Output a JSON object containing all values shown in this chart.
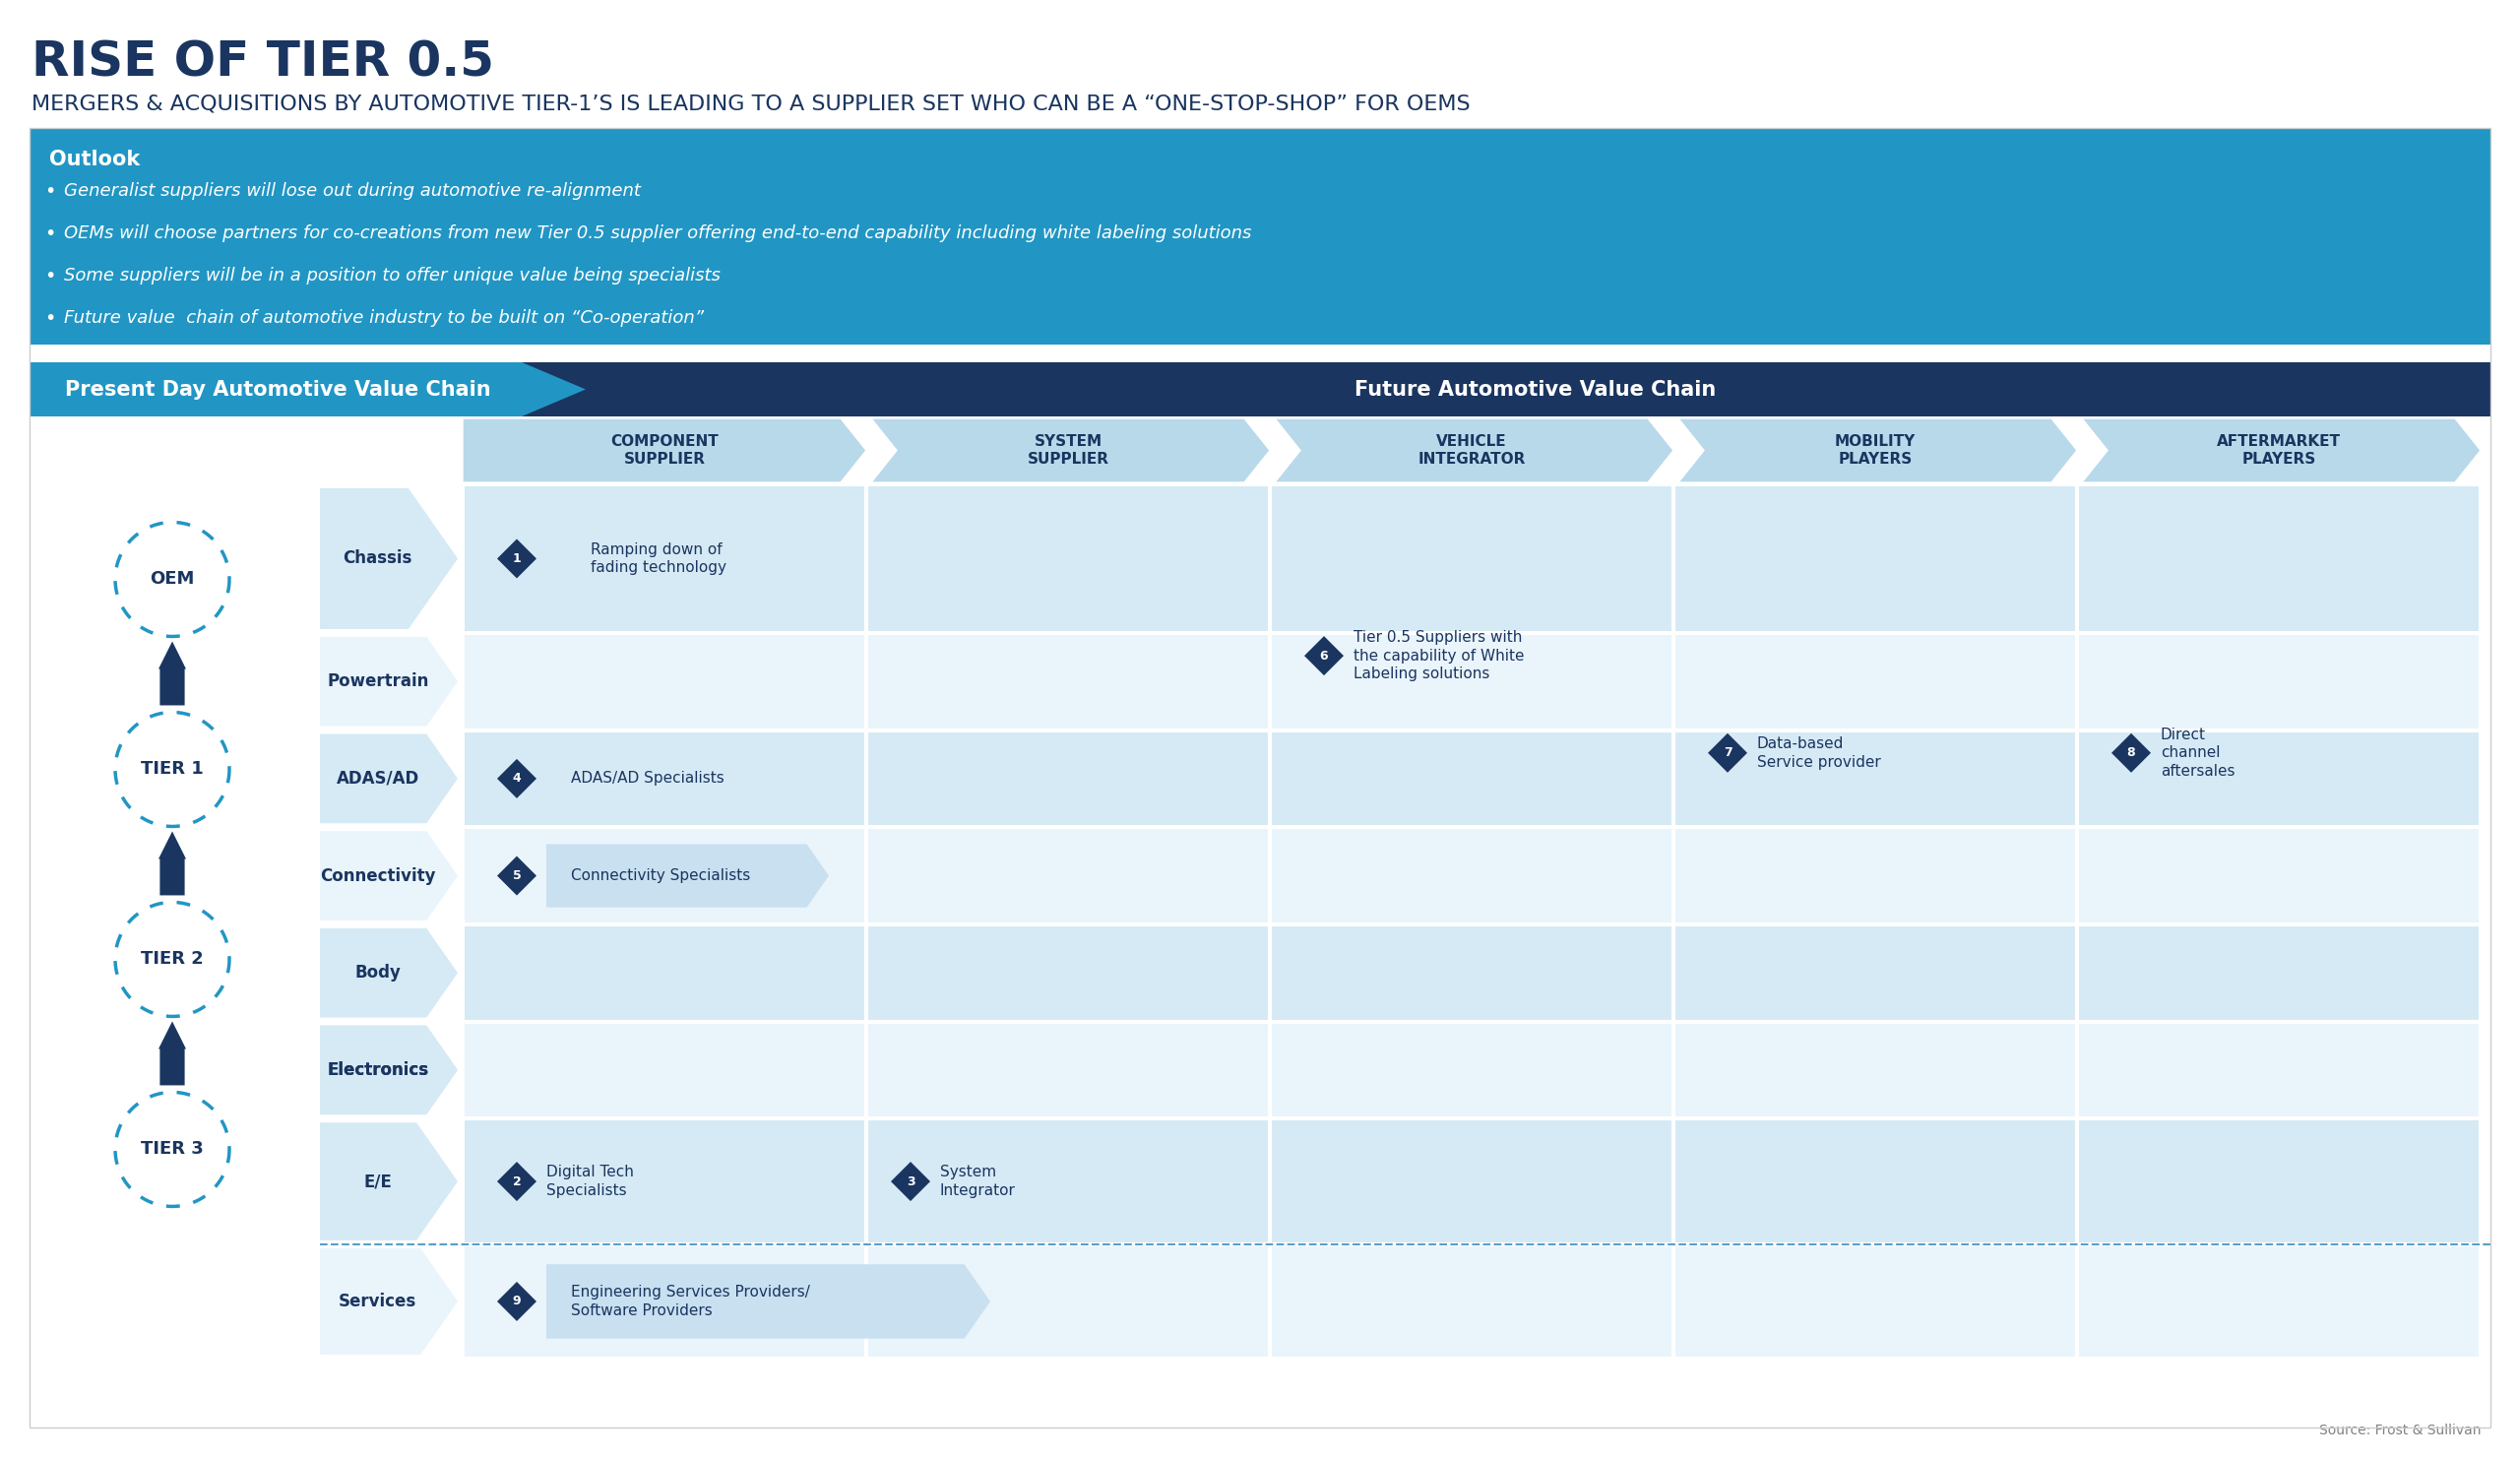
{
  "title": "RISE OF TIER 0.5",
  "subtitle": "MERGERS & ACQUISITIONS BY AUTOMOTIVE TIER-1’S IS LEADING TO A SUPPLIER SET WHO CAN BE A “ONE-STOP-SHOP” FOR OEMS",
  "outlook_title": "Outlook",
  "outlook_bullets": [
    "Generalist suppliers will lose out during automotive re-alignment",
    "OEMs will choose partners for co-creations from new Tier 0.5 supplier offering end-to-end capability including white labeling solutions",
    "Some suppliers will be in a position to offer unique value being specialists",
    "Future value  chain of automotive industry to be built on “Co-operation”"
  ],
  "left_label": "Present Day Automotive Value Chain",
  "right_label": "Future Automotive Value Chain",
  "tiers": [
    "OEM",
    "TIER 1",
    "TIER 2",
    "TIER 3"
  ],
  "rows": [
    "Chassis",
    "Powertrain",
    "ADAS/AD",
    "Connectivity",
    "Body",
    "Electronics",
    "E/E",
    "Services"
  ],
  "col_headers": [
    "COMPONENT\nSUPPLIER",
    "SYSTEM\nSUPPLIER",
    "VEHICLE\nINTEGRATOR",
    "MOBILITY\nPLAYERS",
    "AFTERMARKET\nPLAYERS"
  ],
  "items": [
    {
      "num": "1",
      "text": "Ramping down of\nfading technology",
      "row": "Chassis",
      "col": "COMPONENT\nSUPPLIER"
    },
    {
      "num": "2",
      "text": "Digital Tech\nSpecialists",
      "row": "E/E",
      "col": "COMPONENT\nSUPPLIER"
    },
    {
      "num": "3",
      "text": "System\nIntegrator",
      "row": "E/E",
      "col": "SYSTEM\nSUPPLIER"
    },
    {
      "num": "4",
      "text": "ADAS/AD Specialists",
      "row": "ADAS/AD",
      "col": "COMPONENT\nSUPPLIER"
    },
    {
      "num": "5",
      "text": "Connectivity Specialists",
      "row": "Connectivity",
      "col": "COMPONENT\nSUPPLIER"
    },
    {
      "num": "6",
      "text": "Tier 0.5 Suppliers with\nthe capability of White\nLabeling solutions",
      "row": "Chassis",
      "col": "VEHICLE\nINTEGRATOR"
    },
    {
      "num": "7",
      "text": "Data-based\nService provider",
      "row": "Chassis",
      "col": "MOBILITY\nPLAYERS"
    },
    {
      "num": "8",
      "text": "Direct\nchannel\naftersales",
      "row": "Chassis",
      "col": "AFTERMARKET\nPLAYERS"
    },
    {
      "num": "9",
      "text": "Engineering Services Providers/\nSoftware Providers",
      "row": "Services",
      "col": "COMPONENT\nSUPPLIER"
    }
  ],
  "bg_color": "#ffffff",
  "title_color": "#1a3560",
  "subtitle_color": "#1a3560",
  "outlook_bg": "#2196c4",
  "outlook_text_color": "#ffffff",
  "header_bar_color": "#1a3560",
  "header_text_color": "#ffffff",
  "left_header_bg": "#2196c4",
  "col_header_bg": "#b8d9ea",
  "row_bg_alt1": "#d6eaf5",
  "row_bg_alt2": "#eaf4fb",
  "diamond_color": "#1a3560",
  "circle_border": "#2196c4",
  "arrow_color": "#1a3560",
  "source_text": "Source: Frost & Sullivan"
}
